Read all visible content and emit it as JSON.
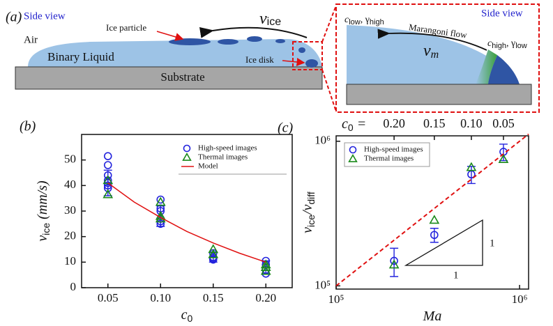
{
  "diagram": {
    "panel_label": "(a)",
    "side_view": "Side view",
    "air": "Air",
    "liquid": "Binary Liquid",
    "substrate": "Substrate",
    "ice_particle": "Ice particle",
    "ice_disk": "Ice disk",
    "velocity": [
      "v",
      "ice"
    ],
    "inset": {
      "side_view": "Side view",
      "flow": "Marangoni flow",
      "left_state": [
        "c",
        "low",
        ", γ",
        "high"
      ],
      "right_state": [
        "c",
        "high",
        ", γ",
        "low"
      ],
      "velocity": [
        "v",
        "m"
      ]
    }
  },
  "chart_data": [
    {
      "type": "scatter",
      "panel_label": "(b)",
      "xlabel": [
        "c",
        "0"
      ],
      "ylabel": [
        "v",
        "ice",
        " (mm/s)"
      ],
      "xlim": [
        0.025,
        0.225
      ],
      "xticks": [
        0.05,
        {
          "value": 0.1,
          "label": "0.10"
        },
        0.15,
        {
          "value": 0.2,
          "label": "0.20"
        }
      ],
      "ylim": [
        0,
        60
      ],
      "yticks": [
        0,
        10,
        20,
        30,
        40,
        50
      ],
      "legend": "upper right",
      "series": [
        {
          "name": "High-speed images",
          "color": "#2222dd",
          "marker": "circle",
          "x": [
            0.05,
            0.05,
            0.05,
            0.05,
            0.05,
            0.05,
            0.05,
            0.1,
            0.1,
            0.1,
            0.1,
            0.1,
            0.1,
            0.15,
            0.15,
            0.15,
            0.15,
            0.2,
            0.2,
            0.2,
            0.2
          ],
          "values": [
            51.5,
            48,
            44,
            42,
            41,
            40,
            39,
            34.5,
            31,
            30,
            27,
            26,
            25,
            13.5,
            12,
            11.5,
            11,
            10.5,
            9,
            7,
            5.5
          ]
        },
        {
          "name": "Thermal images",
          "color": "#1a8a1a",
          "marker": "triangle",
          "x": [
            0.05,
            0.05,
            0.1,
            0.1,
            0.1,
            0.15,
            0.15,
            0.2,
            0.2,
            0.2
          ],
          "values": [
            36.5,
            42,
            33.5,
            28,
            27,
            15,
            13,
            9,
            8,
            6.5
          ]
        },
        {
          "name": "Model",
          "color": "#e01010",
          "line": "solid",
          "x": [
            0.05,
            0.075,
            0.1,
            0.125,
            0.15,
            0.175,
            0.2
          ],
          "values": [
            41,
            33.5,
            27.5,
            22,
            17.5,
            13.5,
            10
          ]
        }
      ],
      "error_bars": {
        "color": "#2222dd",
        "x": [
          0.05,
          0.1,
          0.15,
          0.2
        ],
        "values": [
          41,
          28,
          12,
          8
        ],
        "errors": [
          5,
          4,
          2,
          2.5
        ]
      }
    },
    {
      "type": "scatter",
      "panel_label": "(c)",
      "xlabel": [
        "Ma"
      ],
      "ylabel": [
        "v",
        "ice",
        "/v",
        "diff"
      ],
      "x2label": [
        "c",
        "0",
        " ="
      ],
      "xlog": true,
      "ylog": true,
      "xlim": [
        100000,
        1120000
      ],
      "xticks": [
        {
          "value": 100000,
          "label": "10⁵"
        },
        {
          "value": 1000000,
          "label": "10⁶"
        }
      ],
      "x2ticks": [
        {
          "value": 207000,
          "label": "0.20"
        },
        {
          "value": 343000,
          "label": "0.15"
        },
        {
          "value": 546000,
          "label": "0.10"
        },
        {
          "value": 817000,
          "label": "0.05"
        }
      ],
      "ylim": [
        95000,
        1090000
      ],
      "yticks": [
        {
          "value": 100000,
          "label": "10⁵"
        },
        {
          "value": 1000000,
          "label": "10⁶"
        }
      ],
      "legend": "upper left",
      "series": [
        {
          "name": "High-speed images",
          "color": "#2222dd",
          "marker": "circle",
          "x": [
            207000,
            343000,
            546000,
            817000
          ],
          "values": [
            149000,
            225000,
            590000,
            845000
          ],
          "errors": [
            33000,
            25000,
            80000,
            110000
          ]
        },
        {
          "name": "Thermal images",
          "color": "#1a8a1a",
          "marker": "triangle",
          "x": [
            207000,
            343000,
            546000,
            817000
          ],
          "values": [
            140000,
            285000,
            660000,
            750000
          ]
        },
        {
          "color": "#e01010",
          "line": "dashed",
          "x": [
            100000,
            1120000
          ],
          "values": [
            100000,
            1120000
          ]
        }
      ],
      "slope_labels": [
        "1",
        "1"
      ]
    }
  ]
}
